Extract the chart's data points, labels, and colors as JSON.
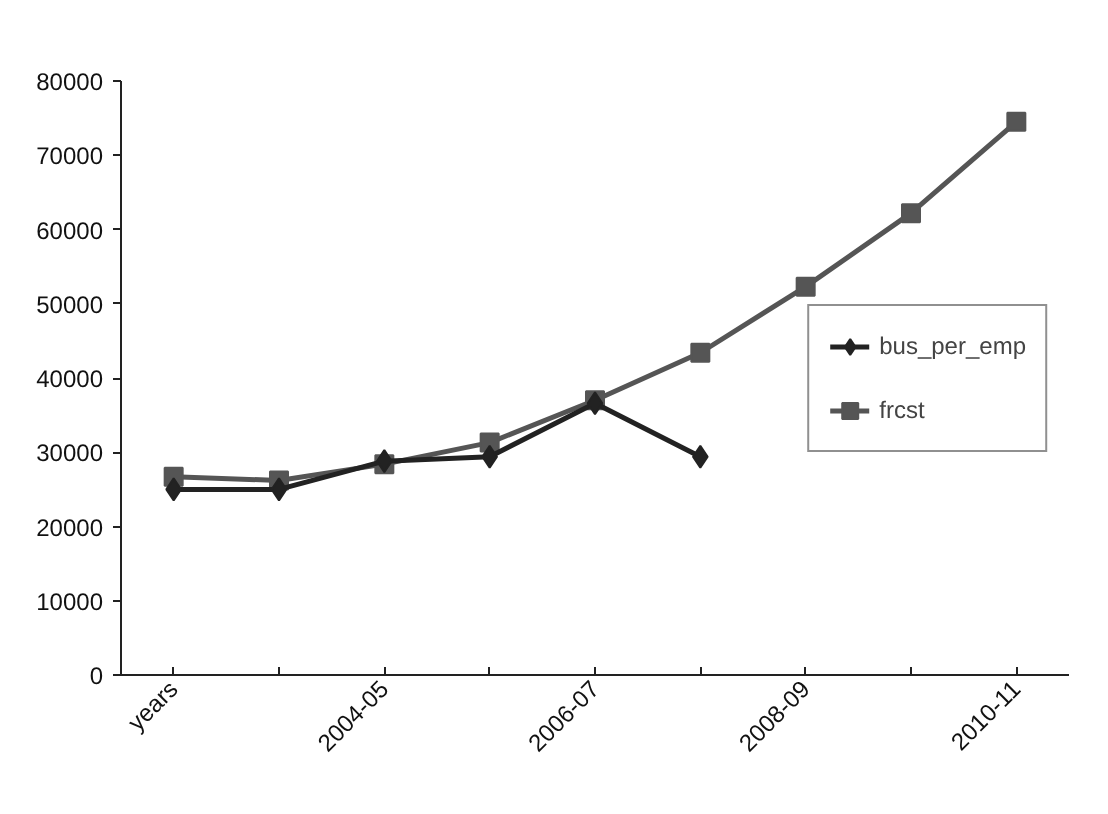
{
  "chart_data": {
    "type": "line",
    "categories": [
      "years",
      null,
      "2004-05",
      null,
      "2006-07",
      null,
      "2008-09",
      null,
      "2010-11"
    ],
    "series": [
      {
        "name": "bus_per_emp",
        "color": "#222222",
        "marker": "diamond",
        "values": [
          25000,
          25000,
          28800,
          29400,
          36600,
          29400,
          null,
          null,
          null
        ]
      },
      {
        "name": "frcst",
        "color": "#555555",
        "marker": "square",
        "values": [
          26700,
          26200,
          28400,
          31300,
          37000,
          43400,
          52300,
          62200,
          74500
        ]
      }
    ],
    "ylim": [
      0,
      80000
    ],
    "yticks": [
      0,
      10000,
      20000,
      30000,
      40000,
      50000,
      60000,
      70000,
      80000
    ],
    "grid": false,
    "legend": "right"
  }
}
